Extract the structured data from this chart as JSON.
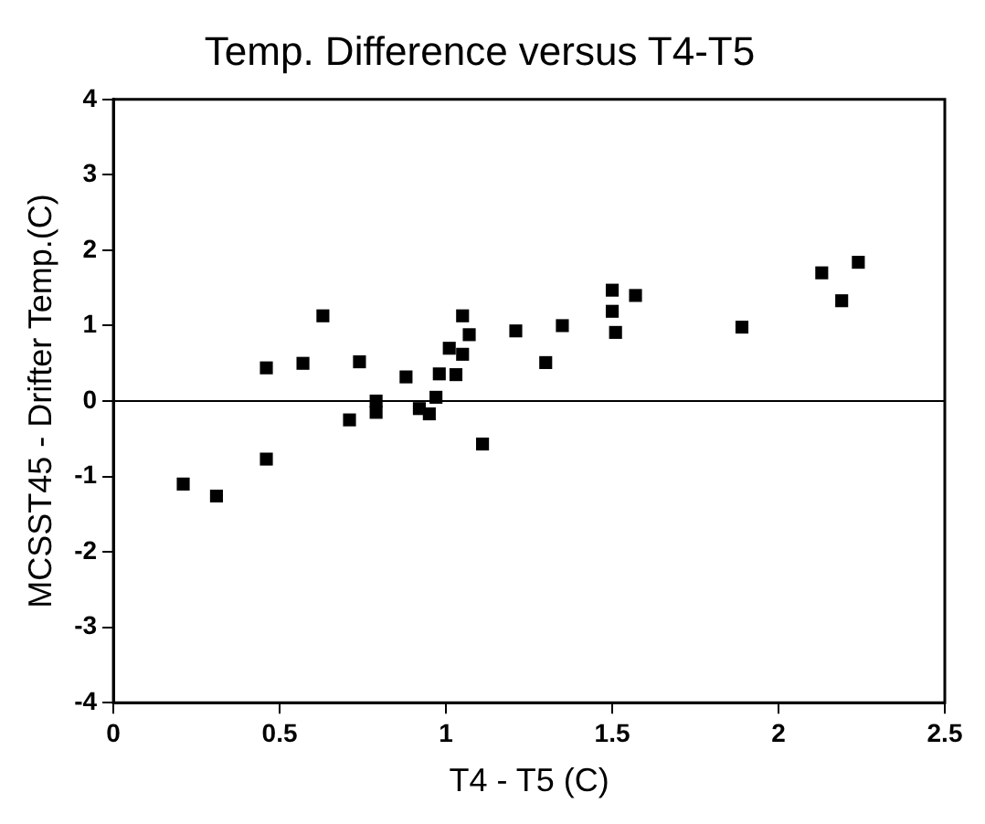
{
  "chart_data": {
    "type": "scatter",
    "title": "Temp. Difference versus T4-T5",
    "xlabel": "T4 - T5 (C)",
    "ylabel": "MCSST45 - Drifter Temp.(C)",
    "x": [
      0.21,
      0.31,
      0.46,
      0.46,
      0.57,
      0.63,
      0.71,
      0.74,
      0.79,
      0.79,
      0.88,
      0.92,
      0.95,
      0.97,
      0.98,
      1.03,
      1.01,
      1.05,
      1.05,
      1.07,
      1.11,
      1.21,
      1.3,
      1.35,
      1.5,
      1.5,
      1.51,
      1.57,
      1.89,
      2.13,
      2.19,
      2.24
    ],
    "series": [
      {
        "color": "#000000",
        "values": [
          -1.1,
          -1.26,
          0.44,
          -0.77,
          0.5,
          1.13,
          -0.25,
          0.52,
          0.0,
          -0.15,
          0.32,
          -0.1,
          -0.17,
          0.05,
          0.36,
          0.35,
          0.7,
          0.62,
          1.13,
          0.88,
          -0.57,
          0.93,
          0.51,
          1.0,
          1.47,
          1.19,
          0.91,
          1.4,
          0.98,
          1.7,
          1.33,
          1.84
        ]
      }
    ],
    "xlim": [
      0,
      2.5
    ],
    "xticks": [
      0,
      0.5,
      1,
      1.5,
      2,
      2.5
    ],
    "ylim": [
      -4,
      4
    ],
    "yticks": [
      -4,
      -3,
      -2,
      -1,
      0,
      1,
      2,
      3,
      4
    ],
    "ref_lines": [
      {
        "axis": "y",
        "value": 0,
        "color": "#000000"
      }
    ],
    "marker": "square",
    "grid": false,
    "legend": false
  }
}
